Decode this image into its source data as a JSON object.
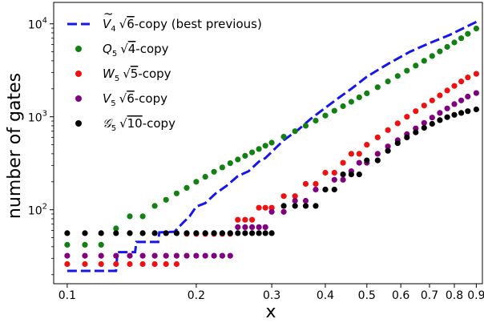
{
  "chart_data": {
    "type": "scatter",
    "title": "",
    "xlabel": "x",
    "ylabel": "number of gates",
    "xscale": "log",
    "yscale": "log",
    "xlim": [
      0.093,
      0.93
    ],
    "ylim": [
      16,
      17000
    ],
    "grid": false,
    "legend_position": "upper-left",
    "x_ticks": [
      {
        "value": 0.1,
        "label": "0.1"
      },
      {
        "value": 0.2,
        "label": "0.2"
      },
      {
        "value": 0.3,
        "label": "0.3"
      },
      {
        "value": 0.4,
        "label": "0.4"
      },
      {
        "value": 0.5,
        "label": "0.5"
      },
      {
        "value": 0.6,
        "label": "0.6"
      },
      {
        "value": 0.7,
        "label": "0.7"
      },
      {
        "value": 0.8,
        "label": "0.8"
      },
      {
        "value": 0.9,
        "label": "0.9"
      }
    ],
    "y_ticks": [
      {
        "value": 100,
        "base": "10",
        "exp": "2"
      },
      {
        "value": 1000,
        "base": "10",
        "exp": "3"
      },
      {
        "value": 10000,
        "base": "10",
        "exp": "4"
      }
    ],
    "series": [
      {
        "name": "Ṽ4 √6-copy (best previous)",
        "kind": "line",
        "color": "#1515ee",
        "x": [
          0.1,
          0.13,
          0.131,
          0.144,
          0.145,
          0.163,
          0.164,
          0.178,
          0.186,
          0.193,
          0.2,
          0.21,
          0.222,
          0.235,
          0.25,
          0.265,
          0.28,
          0.29,
          0.3,
          0.32,
          0.345,
          0.37,
          0.4,
          0.43,
          0.46,
          0.5,
          0.56,
          0.63,
          0.7,
          0.78,
          0.9
        ],
        "y": [
          22,
          22,
          35,
          35,
          45,
          45,
          57,
          58,
          72,
          85,
          108,
          118,
          150,
          180,
          230,
          260,
          330,
          360,
          420,
          560,
          720,
          950,
          1250,
          1600,
          2000,
          2700,
          3700,
          5000,
          6200,
          7600,
          10500
        ]
      },
      {
        "name": "Q5 √4-copy",
        "kind": "scatter",
        "color": "#128012",
        "x": [
          0.1,
          0.11,
          0.12,
          0.13,
          0.14,
          0.15,
          0.16,
          0.17,
          0.18,
          0.19,
          0.2,
          0.21,
          0.22,
          0.23,
          0.24,
          0.25,
          0.26,
          0.27,
          0.28,
          0.29,
          0.3,
          0.32,
          0.34,
          0.36,
          0.38,
          0.4,
          0.42,
          0.44,
          0.46,
          0.48,
          0.5,
          0.53,
          0.56,
          0.59,
          0.62,
          0.65,
          0.68,
          0.71,
          0.74,
          0.77,
          0.8,
          0.83,
          0.86,
          0.9
        ],
        "y": [
          42,
          42,
          42,
          63,
          85,
          85,
          110,
          128,
          150,
          172,
          200,
          226,
          256,
          285,
          317,
          347,
          380,
          414,
          450,
          488,
          527,
          610,
          700,
          800,
          910,
          1030,
          1160,
          1300,
          1450,
          1620,
          1790,
          2080,
          2400,
          2750,
          3130,
          3550,
          4000,
          4500,
          5050,
          5650,
          6300,
          7000,
          7800,
          8900
        ]
      },
      {
        "name": "W5 √5-copy",
        "kind": "scatter",
        "color": "#ee1111",
        "x": [
          0.1,
          0.11,
          0.12,
          0.13,
          0.14,
          0.15,
          0.16,
          0.17,
          0.18,
          0.19,
          0.2,
          0.21,
          0.22,
          0.23,
          0.24,
          0.25,
          0.26,
          0.27,
          0.28,
          0.29,
          0.3,
          0.32,
          0.34,
          0.36,
          0.38,
          0.4,
          0.42,
          0.44,
          0.46,
          0.48,
          0.5,
          0.53,
          0.56,
          0.59,
          0.62,
          0.65,
          0.68,
          0.71,
          0.74,
          0.77,
          0.8,
          0.83,
          0.86,
          0.9
        ],
        "y": [
          26,
          26,
          26,
          26,
          26,
          26,
          26,
          26,
          26,
          55,
          55,
          55,
          55,
          55,
          55,
          78,
          78,
          78,
          105,
          105,
          105,
          140,
          140,
          190,
          190,
          250,
          250,
          320,
          400,
          400,
          500,
          600,
          720,
          850,
          1000,
          1150,
          1320,
          1500,
          1700,
          1920,
          2150,
          2400,
          2650,
          2900
        ]
      },
      {
        "name": "V5 √6-copy",
        "kind": "scatter",
        "color": "#800080",
        "x": [
          0.1,
          0.11,
          0.12,
          0.13,
          0.14,
          0.15,
          0.16,
          0.17,
          0.18,
          0.19,
          0.2,
          0.21,
          0.22,
          0.23,
          0.24,
          0.25,
          0.26,
          0.27,
          0.28,
          0.29,
          0.3,
          0.32,
          0.34,
          0.36,
          0.38,
          0.4,
          0.42,
          0.44,
          0.46,
          0.48,
          0.5,
          0.53,
          0.56,
          0.59,
          0.62,
          0.65,
          0.68,
          0.71,
          0.74,
          0.77,
          0.8,
          0.83,
          0.86,
          0.9
        ],
        "y": [
          32,
          32,
          32,
          32,
          32,
          32,
          32,
          32,
          32,
          32,
          32,
          32,
          32,
          32,
          32,
          65,
          65,
          65,
          65,
          65,
          95,
          95,
          125,
          125,
          165,
          165,
          210,
          210,
          260,
          320,
          320,
          400,
          480,
          560,
          650,
          750,
          860,
          980,
          1100,
          1230,
          1370,
          1500,
          1650,
          1800
        ]
      },
      {
        "name": "G5 √10-copy",
        "kind": "scatter",
        "color": "#000000",
        "x": [
          0.1,
          0.11,
          0.12,
          0.13,
          0.14,
          0.15,
          0.16,
          0.17,
          0.18,
          0.19,
          0.2,
          0.21,
          0.22,
          0.23,
          0.24,
          0.25,
          0.26,
          0.27,
          0.28,
          0.29,
          0.3,
          0.32,
          0.34,
          0.36,
          0.38,
          0.4,
          0.42,
          0.44,
          0.46,
          0.48,
          0.5,
          0.53,
          0.56,
          0.59,
          0.62,
          0.65,
          0.68,
          0.71,
          0.74,
          0.77,
          0.8,
          0.83,
          0.86,
          0.9
        ],
        "y": [
          56,
          56,
          56,
          56,
          56,
          56,
          56,
          56,
          56,
          56,
          56,
          56,
          56,
          56,
          56,
          56,
          56,
          56,
          56,
          56,
          56,
          110,
          110,
          110,
          110,
          165,
          165,
          240,
          240,
          240,
          340,
          340,
          430,
          520,
          600,
          680,
          760,
          840,
          920,
          990,
          1050,
          1100,
          1150,
          1200
        ]
      }
    ],
    "legend": [
      {
        "series": 0,
        "kind": "line",
        "color": "#1515ee",
        "mark": "V",
        "accent": "tilde",
        "sub": "4",
        "root": "6",
        "suffix": "-copy (best previous)"
      },
      {
        "series": 1,
        "kind": "dot",
        "color": "#128012",
        "mark": "Q",
        "sub": "5",
        "root": "4",
        "suffix": "-copy"
      },
      {
        "series": 2,
        "kind": "dot",
        "color": "#ee1111",
        "mark": "W",
        "sub": "5",
        "root": "5",
        "suffix": "-copy"
      },
      {
        "series": 3,
        "kind": "dot",
        "color": "#800080",
        "mark": "V",
        "sub": "5",
        "root": "6",
        "suffix": "-copy"
      },
      {
        "series": 4,
        "kind": "dot",
        "color": "#000000",
        "mark": "𝒢",
        "sub": "5",
        "root": "10",
        "suffix": "-copy"
      }
    ]
  }
}
